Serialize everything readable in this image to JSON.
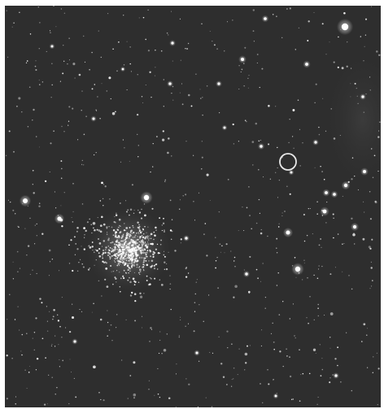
{
  "image": {
    "subject": "star-field-photograph",
    "background_color": "#2e2e2e",
    "star_color": "#ffffff",
    "marker_color": "#e8e8e8",
    "marker_shape": "circle"
  }
}
